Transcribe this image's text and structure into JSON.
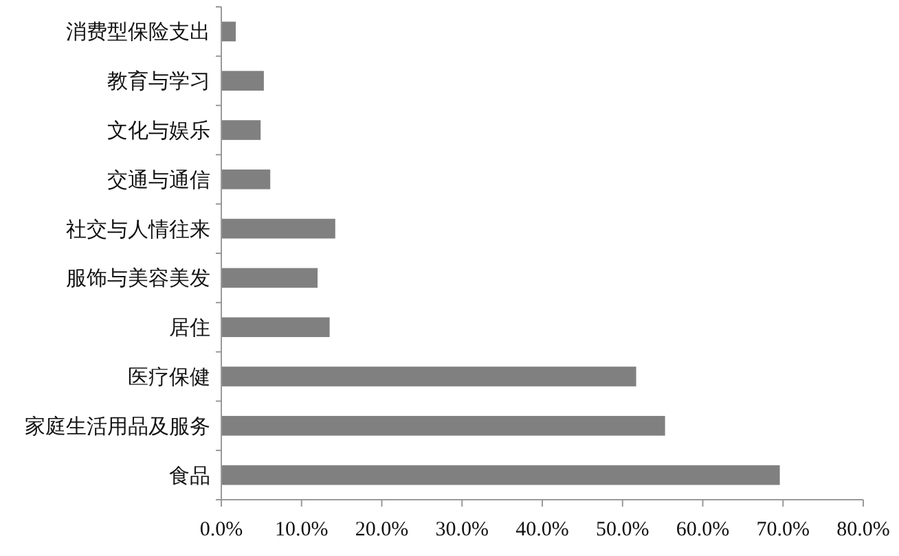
{
  "chart_data": {
    "type": "bar",
    "orientation": "horizontal",
    "categories": [
      "消费型保险支出",
      "教育与学习",
      "文化与娱乐",
      "交通与通信",
      "社交与人情往来",
      "服饰与美容美发",
      "居住",
      "医疗保健",
      "家庭生活用品及服务",
      "食品"
    ],
    "values": [
      1.8,
      5.3,
      4.9,
      6.1,
      14.2,
      12.0,
      13.5,
      51.7,
      55.3,
      69.6
    ],
    "color": "#808080",
    "xlim": [
      0,
      80
    ],
    "xticks": [
      {
        "value": 0,
        "label": "0.0%"
      },
      {
        "value": 10,
        "label": "10.0%"
      },
      {
        "value": 20,
        "label": "20.0%"
      },
      {
        "value": 30,
        "label": "30.0%"
      },
      {
        "value": 40,
        "label": "40.0%"
      },
      {
        "value": 50,
        "label": "50.0%"
      },
      {
        "value": 60,
        "label": "60.0%"
      },
      {
        "value": 70,
        "label": "70.0%"
      },
      {
        "value": 80,
        "label": "80.0%"
      }
    ],
    "grid": false
  }
}
